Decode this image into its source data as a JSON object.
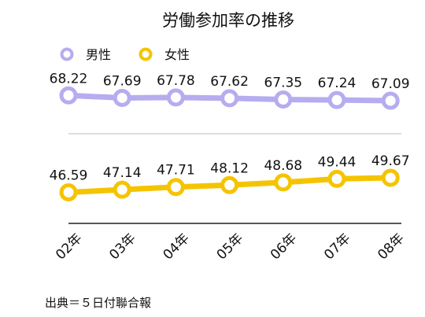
{
  "chart_data": {
    "type": "line",
    "title": "労働参加率の推移",
    "categories": [
      "02年",
      "03年",
      "04年",
      "05年",
      "06年",
      "07年",
      "08年"
    ],
    "series": [
      {
        "name": "男性",
        "values": [
          68.22,
          67.69,
          67.78,
          67.62,
          67.35,
          67.24,
          67.09
        ],
        "color": "#b5adef"
      },
      {
        "name": "女性",
        "values": [
          46.59,
          47.14,
          47.71,
          48.12,
          48.68,
          49.44,
          49.67
        ],
        "color": "#f5c400"
      }
    ],
    "legend_position": "top-left",
    "grid": true,
    "source": "出典＝５日付聯合報"
  }
}
